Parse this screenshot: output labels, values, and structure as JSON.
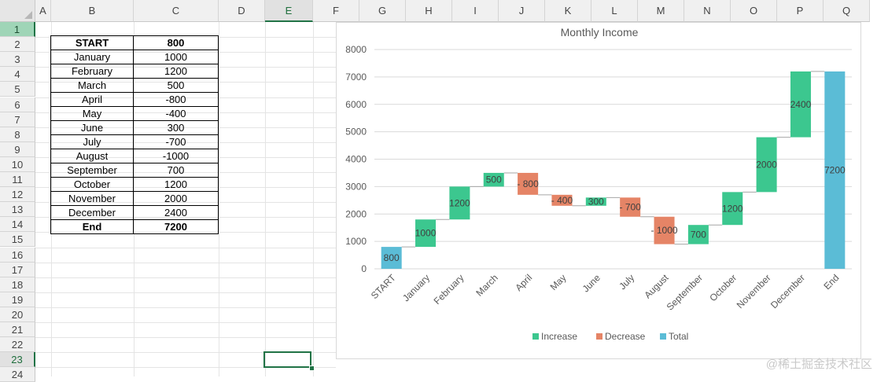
{
  "grid": {
    "columns": [
      "A",
      "B",
      "C",
      "D",
      "E",
      "F",
      "G",
      "H",
      "I",
      "J",
      "K",
      "L",
      "M",
      "N",
      "O",
      "P",
      "Q"
    ],
    "rows": [
      "1",
      "2",
      "3",
      "4",
      "5",
      "6",
      "7",
      "8",
      "9",
      "10",
      "11",
      "12",
      "13",
      "14",
      "15",
      "16",
      "17",
      "18",
      "19",
      "20",
      "21",
      "22",
      "23",
      "24"
    ],
    "selected_column": "E",
    "selected_row": "23",
    "highlight_row": "1"
  },
  "table": {
    "rows": [
      {
        "label": "START",
        "value": "800",
        "bold": true
      },
      {
        "label": "January",
        "value": "1000",
        "bold": false
      },
      {
        "label": "February",
        "value": "1200",
        "bold": false
      },
      {
        "label": "March",
        "value": "500",
        "bold": false
      },
      {
        "label": "April",
        "value": "-800",
        "bold": false
      },
      {
        "label": "May",
        "value": "-400",
        "bold": false
      },
      {
        "label": "June",
        "value": "300",
        "bold": false
      },
      {
        "label": "July",
        "value": "-700",
        "bold": false
      },
      {
        "label": "August",
        "value": "-1000",
        "bold": false
      },
      {
        "label": "September",
        "value": "700",
        "bold": false
      },
      {
        "label": "October",
        "value": "1200",
        "bold": false
      },
      {
        "label": "November",
        "value": "2000",
        "bold": false
      },
      {
        "label": "December",
        "value": "2400",
        "bold": false
      },
      {
        "label": "End",
        "value": "7200",
        "bold": true
      }
    ]
  },
  "chart_data": {
    "type": "bar",
    "title": "Monthly Income",
    "categories": [
      "START",
      "January",
      "February",
      "March",
      "April",
      "May",
      "June",
      "July",
      "August",
      "September",
      "October",
      "November",
      "December",
      "End"
    ],
    "values": [
      800,
      1000,
      1200,
      500,
      -800,
      -400,
      300,
      -700,
      -1000,
      700,
      1200,
      2000,
      2400,
      7200
    ],
    "data_labels": [
      "800",
      "1000",
      "1200",
      "500",
      "- 800",
      "- 400",
      "300",
      "- 700",
      "- 1000",
      "700",
      "1200",
      "2000",
      "2400",
      "7200"
    ],
    "kinds": [
      "total",
      "increase",
      "increase",
      "increase",
      "decrease",
      "decrease",
      "increase",
      "decrease",
      "decrease",
      "increase",
      "increase",
      "increase",
      "increase",
      "total"
    ],
    "ylim": [
      0,
      8000
    ],
    "yticks": [
      "0",
      "1000",
      "2000",
      "3000",
      "4000",
      "5000",
      "6000",
      "7000",
      "8000"
    ],
    "grid": true,
    "legend_position": "bottom",
    "legend": [
      {
        "name": "Increase",
        "color": "#3cc78f"
      },
      {
        "name": "Decrease",
        "color": "#e58466"
      },
      {
        "name": "Total",
        "color": "#5bbcd6"
      }
    ]
  },
  "watermark": "@稀土掘金技术社区"
}
